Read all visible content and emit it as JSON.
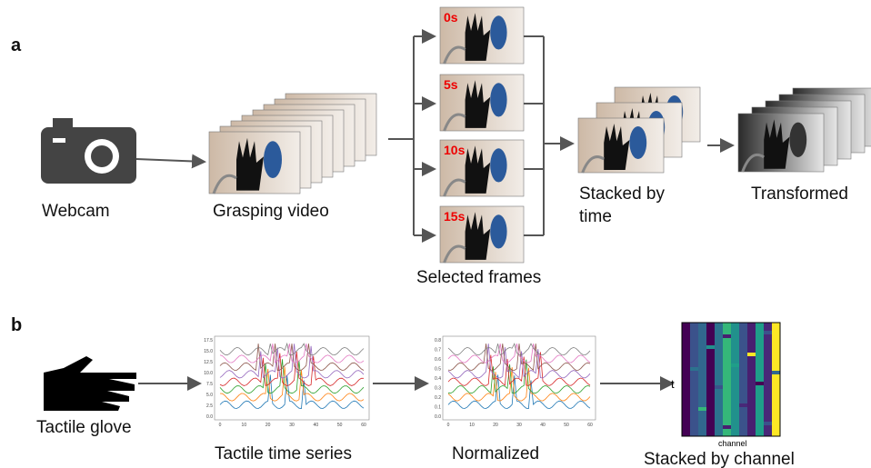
{
  "panel_a": {
    "label": "a",
    "webcam": "Webcam",
    "video": "Grasping video",
    "frames": [
      "0s",
      "5s",
      "10s",
      "15s"
    ],
    "frames_label": "Selected frames",
    "stacked": [
      "Stacked by",
      "time"
    ],
    "transformed": "Transformed"
  },
  "panel_b": {
    "label": "b",
    "glove": "Tactile glove",
    "series_plot": {
      "label": "Tactile time series",
      "yticks": [
        "17.5",
        "15.0",
        "12.5",
        "10.0",
        "7.5",
        "5.0",
        "2.5",
        "0.0"
      ],
      "xticks": [
        "0",
        "10",
        "20",
        "30",
        "40",
        "50",
        "60"
      ]
    },
    "normalized_plot": {
      "label": "Normalized",
      "yticks": [
        "0.8",
        "0.7",
        "0.6",
        "0.5",
        "0.4",
        "0.3",
        "0.2",
        "0.1",
        "0.0"
      ],
      "xticks": [
        "0",
        "10",
        "20",
        "30",
        "40",
        "50",
        "60"
      ]
    },
    "heatmap": {
      "y_label": "t",
      "x_label": "channel",
      "label": "Stacked by channel"
    }
  }
}
